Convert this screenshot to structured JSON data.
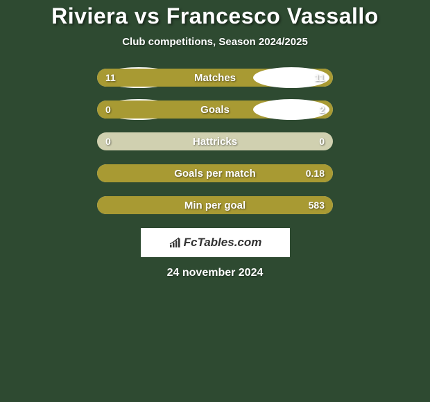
{
  "title": "Riviera vs Francesco Vassallo",
  "subtitle": "Club competitions, Season 2024/2025",
  "colors": {
    "background": "#2e4a31",
    "bar_bg": "#d0d0b0",
    "bar_fill": "#a89a33",
    "text": "#ffffff",
    "oval": "#ffffff"
  },
  "stats": [
    {
      "label": "Matches",
      "left_value": "11",
      "right_value": "11",
      "left_fill_pct": 50,
      "right_fill_pct": 50,
      "show_left_oval": true,
      "show_right_oval": true
    },
    {
      "label": "Goals",
      "left_value": "0",
      "right_value": "2",
      "left_fill_pct": 19,
      "right_fill_pct": 81,
      "show_left_oval": true,
      "show_right_oval": true
    },
    {
      "label": "Hattricks",
      "left_value": "0",
      "right_value": "0",
      "left_fill_pct": 0,
      "right_fill_pct": 0,
      "show_left_oval": false,
      "show_right_oval": false
    },
    {
      "label": "Goals per match",
      "left_value": "",
      "right_value": "0.18",
      "left_fill_pct": 0,
      "right_fill_pct": 100,
      "show_left_oval": false,
      "show_right_oval": false
    },
    {
      "label": "Min per goal",
      "left_value": "",
      "right_value": "583",
      "left_fill_pct": 0,
      "right_fill_pct": 100,
      "show_left_oval": false,
      "show_right_oval": false
    }
  ],
  "logo": {
    "text": "FcTables.com"
  },
  "date": "24 november 2024"
}
